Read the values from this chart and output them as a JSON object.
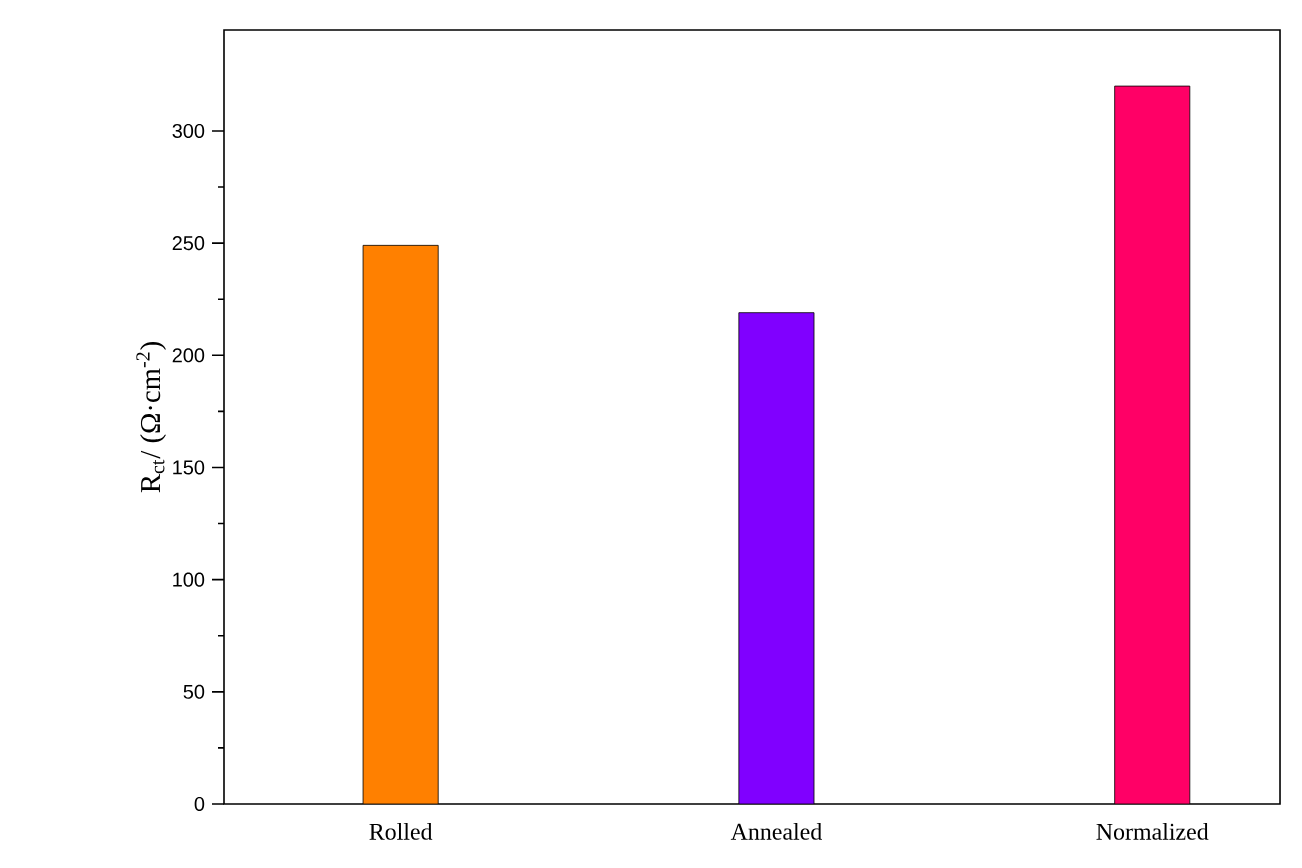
{
  "chart_data": {
    "type": "bar",
    "ylabel": "R$_{ct}$/ (Ω·cm$^{-2}$)",
    "categories": [
      "Rolled",
      "Annealed",
      "Normalized"
    ],
    "values": [
      249,
      219,
      320
    ],
    "colors": [
      "#ff8000",
      "#8000ff",
      "#ff0066"
    ],
    "ylim": [
      0,
      345
    ],
    "yticks": [
      0,
      50,
      100,
      150,
      200,
      250,
      300
    ],
    "grid": false
  }
}
